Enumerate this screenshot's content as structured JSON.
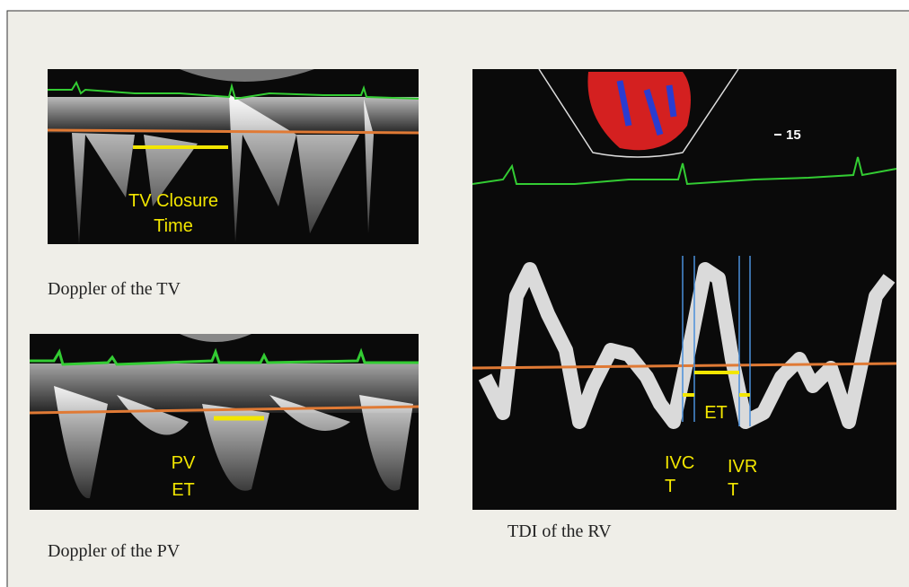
{
  "panels": [
    {
      "caption": "Doppler of the TV",
      "annotations": [
        "TV Closure",
        "Time"
      ]
    },
    {
      "caption": "Doppler of the PV",
      "annotations": [
        "PV",
        "ET"
      ]
    },
    {
      "caption": "TDI of the RV",
      "scale_label": "15",
      "annotations": [
        "ET",
        "IVC",
        "T",
        "IVR",
        "T"
      ]
    }
  ]
}
